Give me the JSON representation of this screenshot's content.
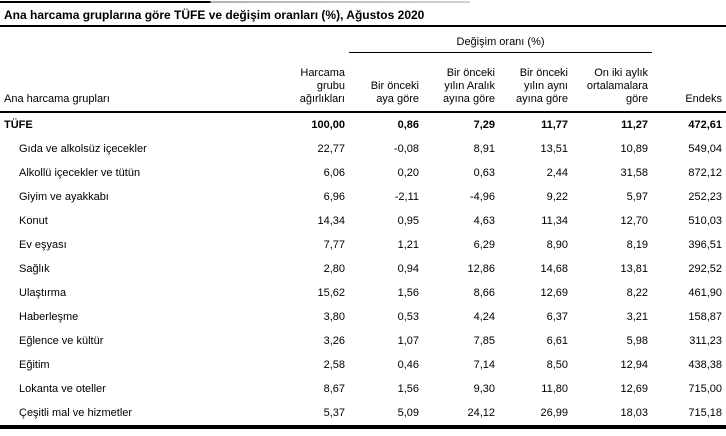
{
  "title": "Ana harcama gruplarına göre TÜFE ve değişim oranları (%), Ağustos 2020",
  "colors": {
    "text": "#000000",
    "rules": "#000000",
    "background": "#ffffff"
  },
  "table": {
    "group_header": "Değişim oranı (%)",
    "columns": {
      "label": "Ana harcama grupları",
      "weight": "Harcama\ngrubu\nağırlıkları",
      "monthly": "Bir önceki\naya göre",
      "since_december": "Bir önceki\nyılın Aralık\nayına göre",
      "yoy": "Bir önceki\nyılın aynı\nayına göre",
      "twelve_month_avg": "On iki aylık\nortalamalara\ngöre",
      "index": "Endeks"
    },
    "rows": [
      {
        "label": "TÜFE",
        "bold": true,
        "values": [
          "100,00",
          "0,86",
          "7,29",
          "11,77",
          "11,27",
          "472,61"
        ]
      },
      {
        "label": "Gıda ve alkolsüz içecekler",
        "bold": false,
        "values": [
          "22,77",
          "-0,08",
          "8,91",
          "13,51",
          "10,89",
          "549,04"
        ]
      },
      {
        "label": "Alkollü içecekler ve tütün",
        "bold": false,
        "values": [
          "6,06",
          "0,20",
          "0,63",
          "2,44",
          "31,58",
          "872,12"
        ]
      },
      {
        "label": "Giyim ve ayakkabı",
        "bold": false,
        "values": [
          "6,96",
          "-2,11",
          "-4,96",
          "9,22",
          "5,97",
          "252,23"
        ]
      },
      {
        "label": "Konut",
        "bold": false,
        "values": [
          "14,34",
          "0,95",
          "4,63",
          "11,34",
          "12,70",
          "510,03"
        ]
      },
      {
        "label": "Ev eşyası",
        "bold": false,
        "values": [
          "7,77",
          "1,21",
          "6,29",
          "8,90",
          "8,19",
          "396,51"
        ]
      },
      {
        "label": "Sağlık",
        "bold": false,
        "values": [
          "2,80",
          "0,94",
          "12,86",
          "14,68",
          "13,81",
          "292,52"
        ]
      },
      {
        "label": "Ulaştırma",
        "bold": false,
        "values": [
          "15,62",
          "1,56",
          "8,66",
          "12,69",
          "8,22",
          "461,90"
        ]
      },
      {
        "label": "Haberleşme",
        "bold": false,
        "values": [
          "3,80",
          "0,53",
          "4,24",
          "6,37",
          "3,21",
          "158,87"
        ]
      },
      {
        "label": "Eğlence ve kültür",
        "bold": false,
        "values": [
          "3,26",
          "1,07",
          "7,85",
          "6,61",
          "5,98",
          "311,23"
        ]
      },
      {
        "label": "Eğitim",
        "bold": false,
        "values": [
          "2,58",
          "0,46",
          "7,14",
          "8,50",
          "12,94",
          "438,38"
        ]
      },
      {
        "label": "Lokanta ve oteller",
        "bold": false,
        "values": [
          "8,67",
          "1,56",
          "9,30",
          "11,80",
          "12,69",
          "715,00"
        ]
      },
      {
        "label": "Çeşitli mal ve hizmetler",
        "bold": false,
        "values": [
          "5,37",
          "5,09",
          "24,12",
          "26,99",
          "18,03",
          "715,18"
        ]
      }
    ]
  }
}
